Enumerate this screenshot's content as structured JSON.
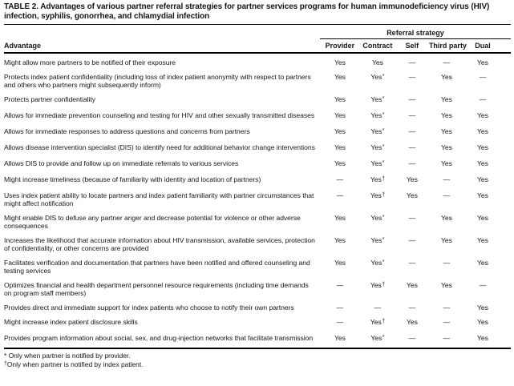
{
  "page": {
    "title": "TABLE 2. Advantages of various partner referral strategies for partner services programs for human immunodeficiency virus (HIV) infection, syphilis, gonorrhea, and chlamydial infection"
  },
  "table": {
    "group_header": "Referral strategy",
    "advantage_column": "Advantage",
    "strategy_columns": [
      "Provider",
      "Contract",
      "Self",
      "Third party",
      "Dual"
    ],
    "rows": [
      {
        "advantage": "Might allow more partners to be notified of their exposure",
        "values": [
          "Yes",
          "Yes",
          "—",
          "—",
          "Yes"
        ]
      },
      {
        "advantage": "Protects index patient confidentiality (including loss of index patient anonymity with respect to partners and others who partners might subsequently inform)",
        "values": [
          "Yes",
          "Yes*",
          "—",
          "Yes",
          "—"
        ]
      },
      {
        "advantage": "Protects partner confidentiality",
        "values": [
          "Yes",
          "Yes*",
          "—",
          "Yes",
          "—"
        ]
      },
      {
        "advantage": "Allows for immediate prevention counseling and testing for HIV and other sexually transmitted diseases",
        "values": [
          "Yes",
          "Yes*",
          "—",
          "Yes",
          "Yes"
        ]
      },
      {
        "advantage": "Allows for immediate responses to address questions and concerns from partners",
        "values": [
          "Yes",
          "Yes*",
          "—",
          "Yes",
          "Yes"
        ]
      },
      {
        "advantage": "Allows disease intervention specialist (DIS) to identify need for additional behavior change interventions",
        "values": [
          "Yes",
          "Yes*",
          "—",
          "Yes",
          "Yes"
        ]
      },
      {
        "advantage": "Allows DIS to provide and follow up on immediate referrals to various services",
        "values": [
          "Yes",
          "Yes*",
          "—",
          "Yes",
          "Yes"
        ]
      },
      {
        "advantage": "Might increase timeliness (because of familiarity with identity and location of partners)",
        "values": [
          "—",
          "Yes†",
          "Yes",
          "—",
          "Yes"
        ]
      },
      {
        "advantage": "Uses index patient ability to locate partners and index patient familiarity with partner circumstances that might affect notification",
        "values": [
          "—",
          "Yes†",
          "Yes",
          "—",
          "Yes"
        ]
      },
      {
        "advantage": "Might enable DIS to defuse any partner anger and decrease potential for violence or other adverse consequences",
        "values": [
          "Yes",
          "Yes*",
          "—",
          "Yes",
          "Yes"
        ]
      },
      {
        "advantage": "Increases the likelihood that accurate information about HIV transmission, available services, protection of confidentiality, or other concerns are provided",
        "values": [
          "Yes",
          "Yes*",
          "—",
          "Yes",
          "Yes"
        ]
      },
      {
        "advantage": "Facilitates verification and documentation that partners have been notified and offered counseling and testing services",
        "values": [
          "Yes",
          "Yes*",
          "—",
          "—",
          "Yes"
        ]
      },
      {
        "advantage": "Optimizes financial and health department personnel resource requirements (including time demands on program staff members)",
        "values": [
          "—",
          "Yes†",
          "Yes",
          "Yes",
          "—"
        ]
      },
      {
        "advantage": "Provides direct and immediate support for index patients who choose to notify their own partners",
        "values": [
          "—",
          "—",
          "—",
          "—",
          "Yes"
        ]
      },
      {
        "advantage": "Might increase index patient disclosure skills",
        "values": [
          "—",
          "Yes†",
          "Yes",
          "—",
          "Yes"
        ]
      },
      {
        "advantage": "Provides program information about social, sex, and drug-injection networks that facilitate transmission",
        "values": [
          "Yes",
          "Yes*",
          "—",
          "—",
          "Yes"
        ]
      }
    ]
  },
  "footnotes": [
    {
      "marker": "*",
      "text": "Only when partner is notified by provider."
    },
    {
      "marker": "†",
      "text": "Only when partner is notified by index patient."
    }
  ],
  "colors": {
    "background": "#ffffff",
    "text": "#161616",
    "rule": "#000000"
  }
}
